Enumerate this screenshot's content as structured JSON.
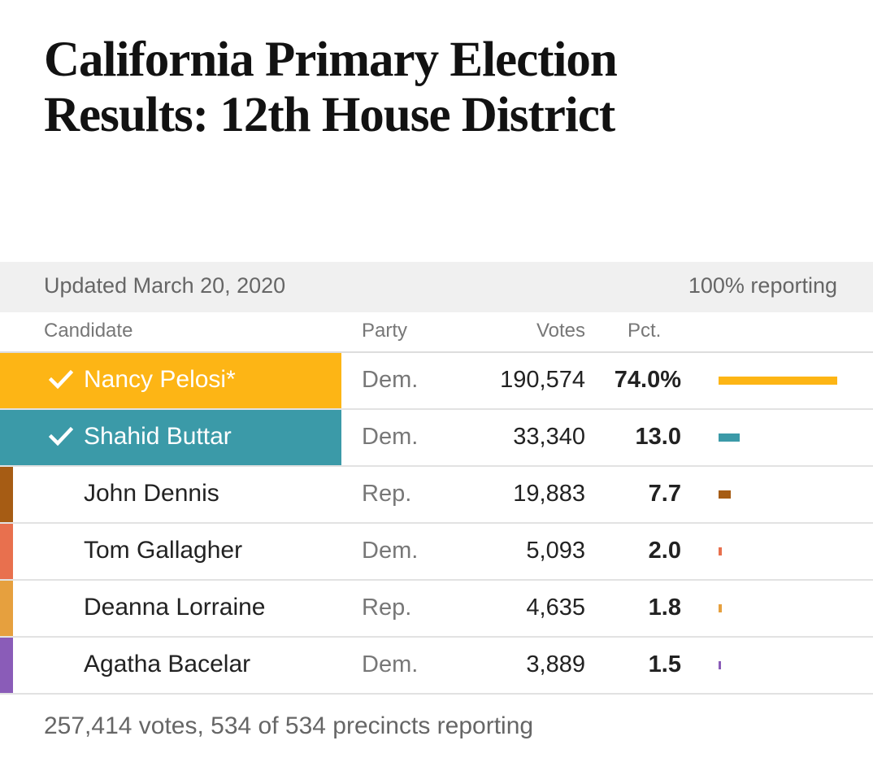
{
  "title_line1": "California Primary Election",
  "title_line2": "Results: 12th House District",
  "status": {
    "updated": "Updated March 20, 2020",
    "reporting": "100% reporting"
  },
  "headers": {
    "candidate": "Candidate",
    "party": "Party",
    "votes": "Votes",
    "pct": "Pct."
  },
  "chart_data": {
    "type": "table",
    "title": "California Primary Election Results: 12th House District",
    "columns": [
      "Candidate",
      "Party",
      "Votes",
      "Pct."
    ],
    "max_pct": 74.0,
    "rows": [
      {
        "name": "Nancy Pelosi*",
        "party": "Dem.",
        "votes": "190,574",
        "pct_label": "74.0%",
        "pct": 74.0,
        "winner": true,
        "color": "#fdb515"
      },
      {
        "name": "Shahid Buttar",
        "party": "Dem.",
        "votes": "33,340",
        "pct_label": "13.0",
        "pct": 13.0,
        "winner": true,
        "color": "#3b9aa8"
      },
      {
        "name": "John Dennis",
        "party": "Rep.",
        "votes": "19,883",
        "pct_label": "7.7",
        "pct": 7.7,
        "winner": false,
        "color": "#a65c14"
      },
      {
        "name": "Tom Gallagher",
        "party": "Dem.",
        "votes": "5,093",
        "pct_label": "2.0",
        "pct": 2.0,
        "winner": false,
        "color": "#e8704e"
      },
      {
        "name": "Deanna Lorraine",
        "party": "Rep.",
        "votes": "4,635",
        "pct_label": "1.8",
        "pct": 1.8,
        "winner": false,
        "color": "#e6a03e"
      },
      {
        "name": "Agatha Bacelar",
        "party": "Dem.",
        "votes": "3,889",
        "pct_label": "1.5",
        "pct": 1.5,
        "winner": false,
        "color": "#8a5cb8"
      }
    ]
  },
  "footer": "257,414 votes, 534 of 534 precincts reporting"
}
